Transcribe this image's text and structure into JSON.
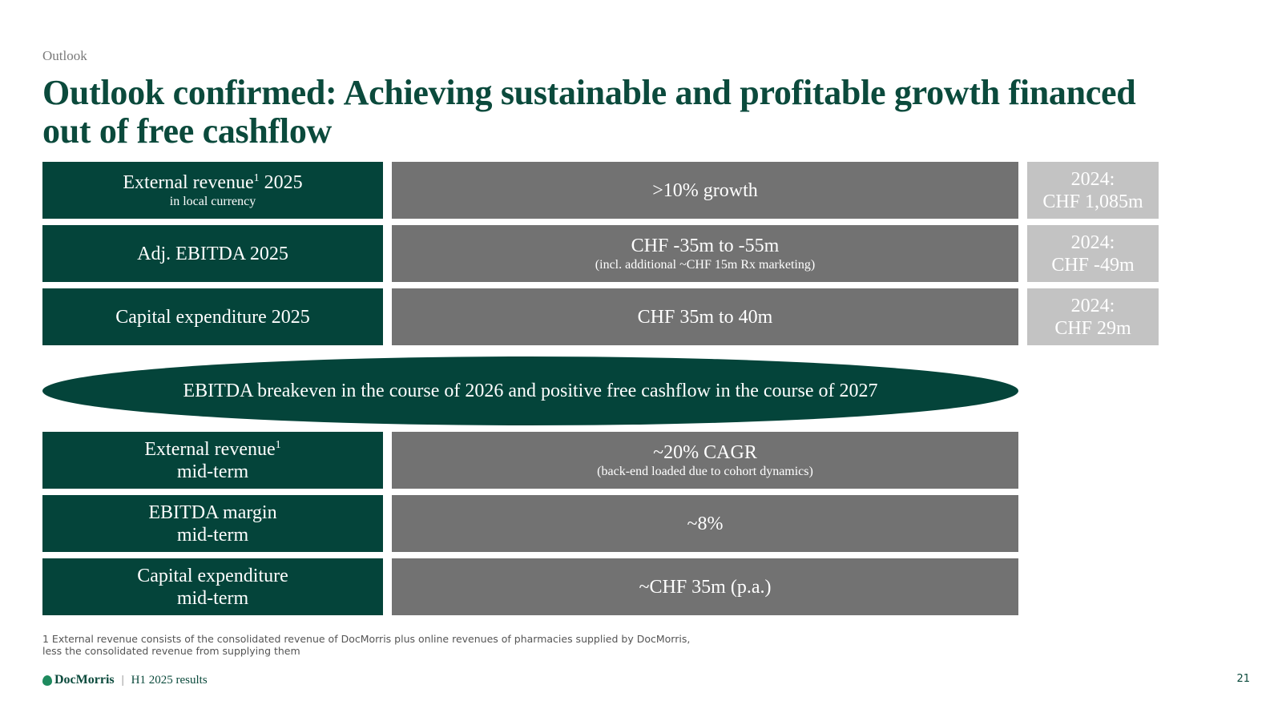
{
  "section_label": "Outlook",
  "title": "Outlook confirmed: Achieving sustainable and profitable growth financed out of free cashflow",
  "rows_2025": [
    {
      "label": "External revenue",
      "label_sup": "1",
      "label_suffix": " 2025",
      "label_sub": "in local currency",
      "value": ">10% growth",
      "value_sub": "",
      "prior": "2024:",
      "prior_value": "CHF 1,085m"
    },
    {
      "label": "Adj. EBITDA 2025",
      "value": "CHF -35m to -55m",
      "value_sub": "(incl. additional ~CHF 15m Rx marketing)",
      "prior": "2024:",
      "prior_value": "CHF -49m"
    },
    {
      "label": "Capital expenditure 2025",
      "value": "CHF 35m to 40m",
      "value_sub": "",
      "prior": "2024:",
      "prior_value": "CHF 29m"
    }
  ],
  "banner": "EBITDA breakeven in the course of 2026 and positive free cashflow in the course of 2027",
  "rows_midterm": [
    {
      "label": "External revenue",
      "label_sup": "1",
      "label_line2": "mid-term",
      "value": "~20% CAGR",
      "value_sub": "(back-end loaded due to cohort dynamics)"
    },
    {
      "label": "EBITDA margin",
      "label_line2": "mid-term",
      "value": "~8%",
      "value_sub": ""
    },
    {
      "label": "Capital expenditure",
      "label_line2": "mid-term",
      "value": "~CHF 35m (p.a.)",
      "value_sub": ""
    }
  ],
  "footnote": {
    "line1": "1 External revenue consists of the consolidated revenue of DocMorris plus online revenues of pharmacies supplied by DocMorris,",
    "line2": "less the consolidated revenue from supplying them"
  },
  "footer": {
    "logo_text": "DocMorris",
    "separator": "|",
    "text": "H1 2025 results",
    "logo_icon": "leaf-icon"
  },
  "page_number": "21",
  "colors": {
    "dark_green": "#04443a",
    "mid_gray": "#727272",
    "light_gray": "#c3c3c3",
    "title_green": "#0b4a3c"
  }
}
